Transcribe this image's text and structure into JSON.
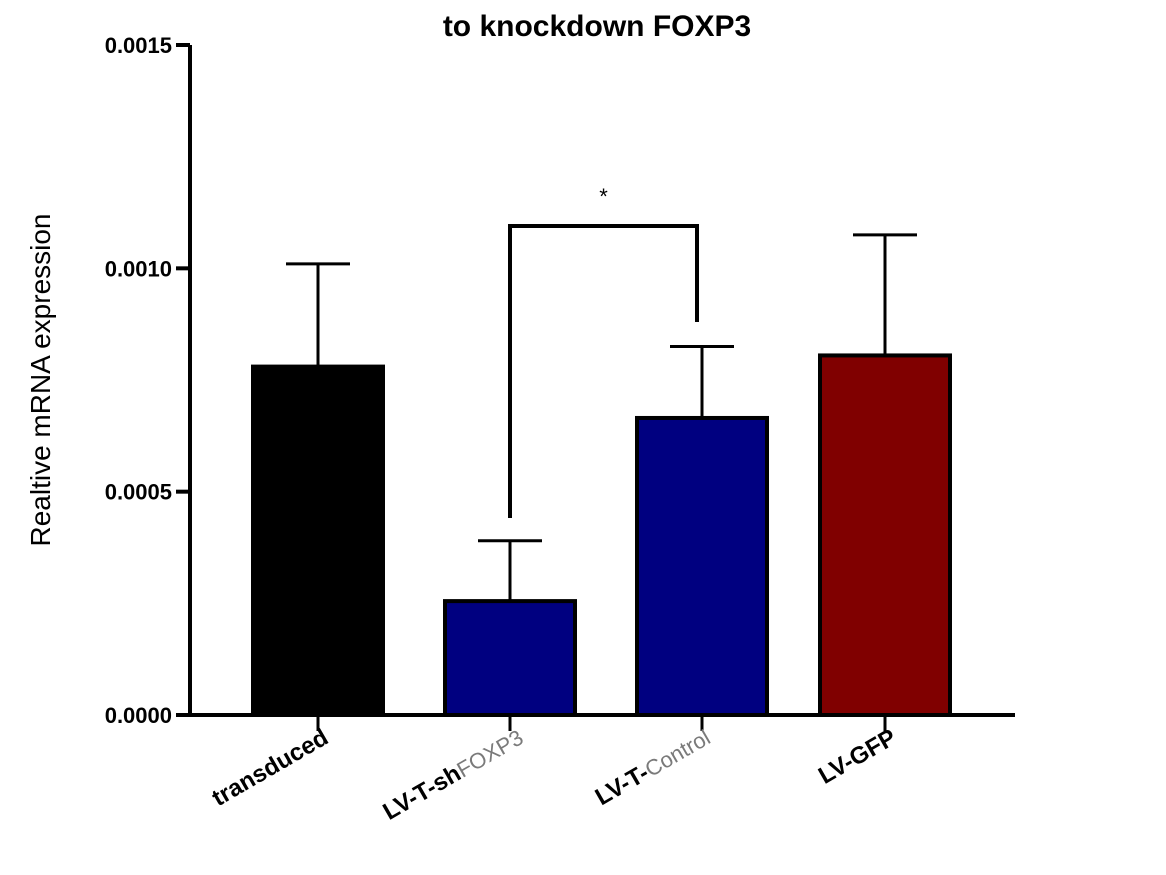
{
  "chart_data": {
    "type": "bar",
    "title": "to knockdown FOXP3",
    "ylabel": "Realtive mRNA expression",
    "xlabel": "",
    "ylim": [
      0,
      0.0015
    ],
    "yticks": [
      "0.0000",
      "0.0005",
      "0.0010",
      "0.0015"
    ],
    "categories": [
      {
        "bold": "transduced",
        "light": ""
      },
      {
        "bold": "LV-T-sh",
        "light": "FOXP3"
      },
      {
        "bold": "LV-T-",
        "light": "Control"
      },
      {
        "bold": "LV-GFP",
        "light": ""
      }
    ],
    "values": [
      0.00078,
      0.000255,
      0.000665,
      0.000805
    ],
    "errors": [
      0.00023,
      0.000135,
      0.00016,
      0.00027
    ],
    "colors": [
      "#000000",
      "#000080",
      "#000080",
      "#800000"
    ],
    "grid": false,
    "significance": {
      "from": 1,
      "to": 2,
      "y": 0.00105,
      "label": "*"
    }
  }
}
